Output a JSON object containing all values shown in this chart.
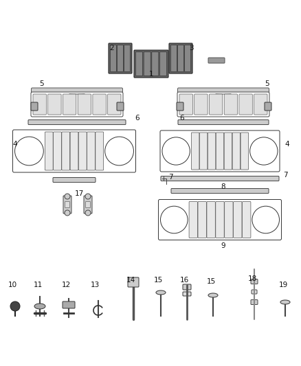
{
  "bg_color": "#ffffff",
  "fig_width": 4.38,
  "fig_height": 5.33,
  "dpi": 100,
  "lc": "#444444",
  "fc_light": "#e8e8e8",
  "fc_mid": "#cccccc",
  "fc_dark": "#888888",
  "fc_black": "#333333"
}
